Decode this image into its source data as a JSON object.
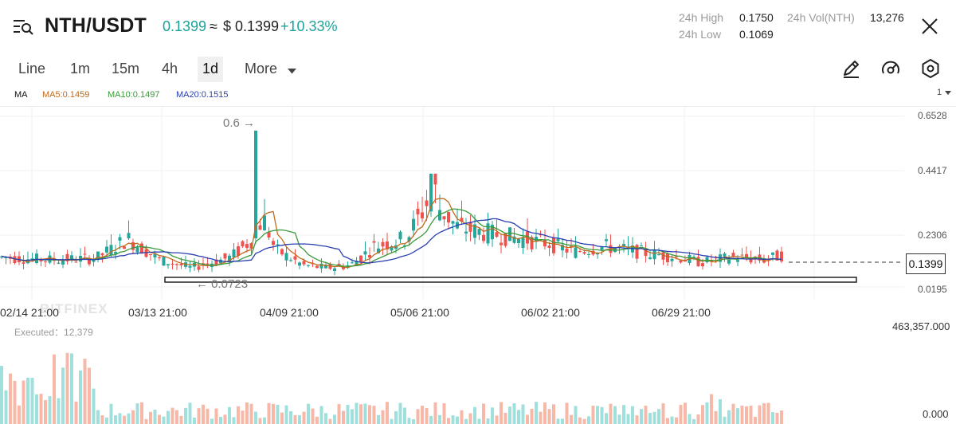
{
  "header": {
    "pair": "NTH/USDT",
    "price": "0.1399",
    "approx_symbol": "≈",
    "usd_price": "$ 0.1399",
    "change": "+10.33%",
    "high_label": "24h High",
    "high_value": "0.1750",
    "low_label": "24h Low",
    "low_value": "0.1069",
    "vol_label": "24h Vol(NTH)",
    "vol_value": "13,276",
    "up_color": "#1aa39a"
  },
  "toolbar": {
    "tabs": [
      "Line",
      "1m",
      "15m",
      "4h",
      "1d",
      "More"
    ],
    "active_tab": "1d",
    "tools": [
      "pencil-icon",
      "speedometer-icon",
      "hexagon-settings-icon"
    ]
  },
  "indicators": {
    "ma_label": "MA",
    "ma5": "MA5:0.1459",
    "ma10": "MA10:0.1497",
    "ma20": "MA20:0.1515",
    "ma5_color": "#c06a1b",
    "ma10_color": "#3a9a3a",
    "ma20_color": "#2a3fb0",
    "scale_selector": "1"
  },
  "chart": {
    "y_ticks": [
      "0.6528",
      "0.4417",
      "0.2306",
      "0.0195"
    ],
    "x_ticks": [
      "02/14 21:00",
      "03/13 21:00",
      "04/09 21:00",
      "05/06 21:00",
      "06/02 21:00",
      "06/29 21:00"
    ],
    "current_price_tag": "0.1399",
    "max_annotation": "0.6",
    "min_annotation": "0.0723",
    "watermark": "BITFINEX",
    "up_color": "#26a69a",
    "down_color": "#ef5350"
  },
  "volume": {
    "executed": "Executed：12,379",
    "max_label": "463,357.000",
    "min_label": "0.000"
  },
  "chart_data": {
    "type": "candlestick",
    "title": "",
    "xlabel": "",
    "ylabel": "",
    "ylim": [
      0.0195,
      0.6528
    ],
    "x": [
      "02/14 21:00",
      "03/13 21:00",
      "04/09 21:00",
      "05/06 21:00",
      "06/02 21:00",
      "06/29 21:00"
    ],
    "y_ticks": [
      0.6528,
      0.4417,
      0.2306,
      0.0195
    ],
    "annotations": [
      {
        "label": "0.6",
        "value": 0.6
      },
      {
        "label": "0.0723",
        "value": 0.0723
      }
    ],
    "current_price": 0.1399,
    "moving_averages": [
      {
        "name": "MA5",
        "value": 0.1459
      },
      {
        "name": "MA10",
        "value": 0.1497
      },
      {
        "name": "MA20",
        "value": 0.1515
      }
    ],
    "volume_range": [
      0,
      463357
    ]
  }
}
